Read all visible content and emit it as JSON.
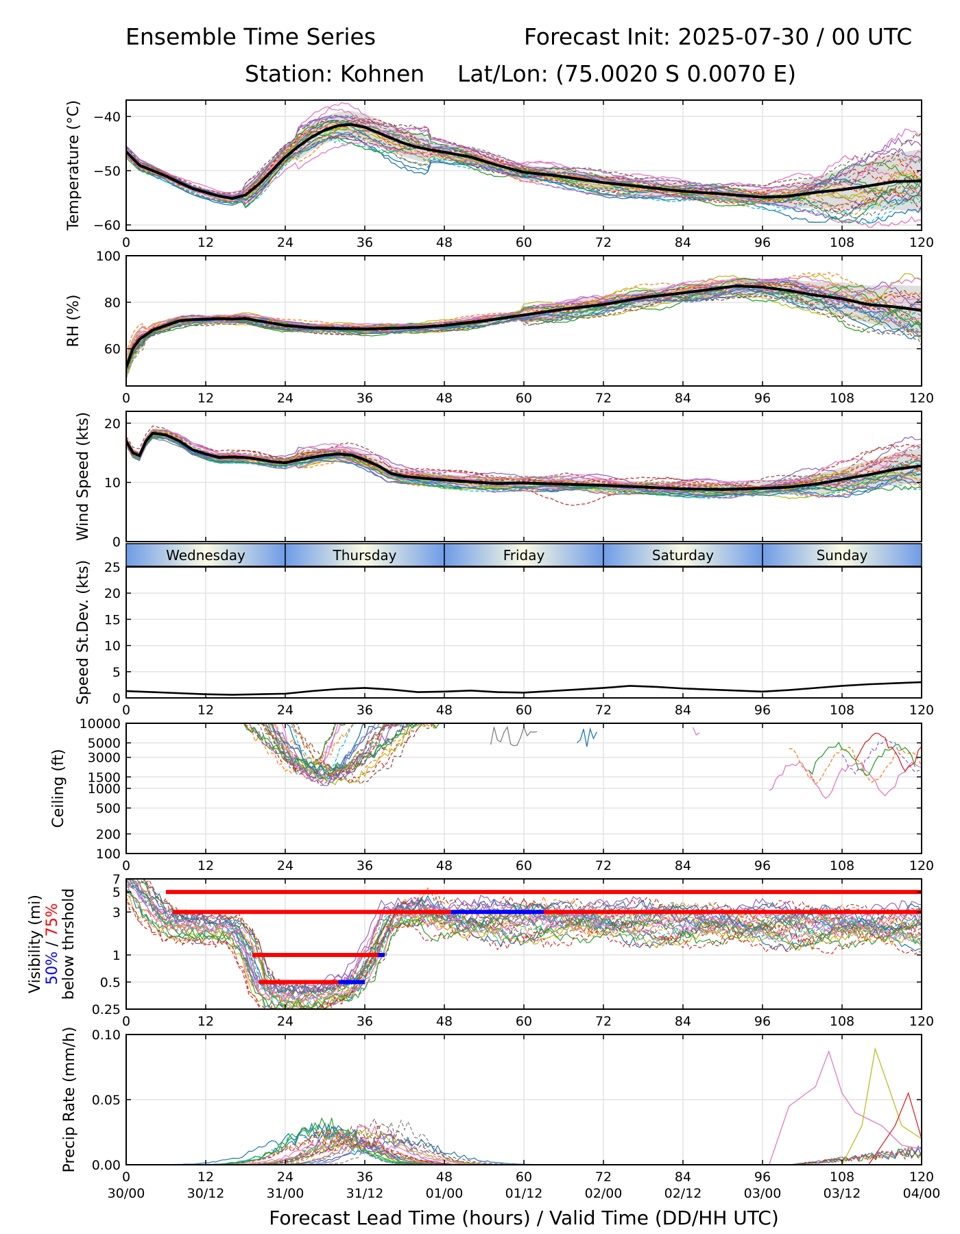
{
  "header": {
    "title": "Ensemble Time Series",
    "init": "Forecast Init: 2025-07-30 / 00 UTC",
    "station": "Station: Kohnen",
    "latlon": "Lat/Lon: (75.0020 S 0.0070 E)"
  },
  "xaxis": {
    "ticks": [
      0,
      12,
      24,
      36,
      48,
      60,
      72,
      84,
      96,
      108,
      120
    ],
    "valid_labels": [
      "30/00",
      "30/12",
      "31/00",
      "31/12",
      "01/00",
      "01/12",
      "02/00",
      "02/12",
      "03/00",
      "03/12",
      "04/00"
    ],
    "label": "Forecast Lead Time (hours) / Valid Time (DD/HH UTC)",
    "range": [
      0,
      120
    ]
  },
  "days": [
    "Wednesday",
    "Thursday",
    "Friday",
    "Saturday",
    "Sunday"
  ],
  "colors": {
    "members": [
      "#1f77b4",
      "#ff7f0e",
      "#2ca02c",
      "#d62728",
      "#9467bd",
      "#8c564b",
      "#e377c2",
      "#7f7f7f",
      "#bcbd22",
      "#17becf"
    ],
    "mean": "#000000",
    "spread": "#c8c8c8",
    "vis50": "#0000ff",
    "vis75": "#ff0000",
    "day_edge": "#6f9ce6",
    "day_center": "#fbfbe4"
  },
  "chart_data": [
    {
      "id": "temperature",
      "type": "line",
      "ylabel": "Temperature (°C)",
      "ylim": [
        -61,
        -37
      ],
      "yticks": [
        -40,
        -50,
        -60
      ],
      "grid": true,
      "series": [
        {
          "role": "mean",
          "x": [
            0,
            2,
            4,
            6,
            8,
            10,
            12,
            14,
            16,
            18,
            20,
            22,
            24,
            26,
            28,
            30,
            32,
            34,
            36,
            38,
            40,
            42,
            44,
            46,
            48,
            52,
            56,
            60,
            64,
            68,
            72,
            78,
            84,
            90,
            96,
            100,
            104,
            108,
            112,
            116,
            120
          ],
          "values": [
            -46.5,
            -49.0,
            -50.0,
            -51.0,
            -52.2,
            -53.3,
            -54.0,
            -54.7,
            -55.1,
            -54.5,
            -52.5,
            -50.0,
            -47.5,
            -45.5,
            -43.8,
            -42.5,
            -41.7,
            -41.5,
            -42.0,
            -43.0,
            -44.0,
            -45.0,
            -45.7,
            -46.2,
            -46.6,
            -47.5,
            -49.0,
            -50.3,
            -50.8,
            -51.5,
            -52.2,
            -53.0,
            -53.8,
            -54.3,
            -54.9,
            -54.7,
            -54.0,
            -53.5,
            -52.8,
            -52.0,
            -51.9
          ]
        }
      ]
    },
    {
      "id": "rh",
      "type": "line",
      "ylabel": "RH (%)",
      "ylim": [
        44,
        100
      ],
      "yticks": [
        60,
        80,
        100
      ],
      "grid": true,
      "series": [
        {
          "role": "mean",
          "x": [
            0,
            1,
            2,
            4,
            6,
            8,
            10,
            12,
            14,
            16,
            18,
            20,
            24,
            28,
            32,
            36,
            40,
            44,
            48,
            54,
            60,
            66,
            72,
            78,
            84,
            88,
            92,
            96,
            100,
            104,
            108,
            112,
            116,
            120
          ],
          "values": [
            52,
            60,
            64,
            68,
            70,
            72,
            72.5,
            72.7,
            73,
            72.8,
            73,
            72,
            70,
            69,
            68.7,
            68.5,
            68.8,
            69.2,
            70,
            72,
            74.5,
            77,
            79,
            82,
            84,
            85.5,
            87,
            86.5,
            85,
            83,
            81.5,
            79,
            78,
            76.5
          ]
        }
      ]
    },
    {
      "id": "wind_speed",
      "type": "line",
      "ylabel": "Wind Speed (kts)",
      "ylim": [
        0,
        22
      ],
      "yticks": [
        0,
        10,
        20
      ],
      "grid": true,
      "series": [
        {
          "role": "mean",
          "x": [
            0,
            1,
            2,
            3,
            4,
            6,
            8,
            10,
            12,
            14,
            16,
            18,
            20,
            22,
            24,
            26,
            28,
            30,
            32,
            34,
            36,
            38,
            40,
            42,
            44,
            46,
            48,
            52,
            56,
            60,
            66,
            72,
            78,
            84,
            90,
            96,
            100,
            104,
            108,
            112,
            116,
            120
          ],
          "values": [
            17,
            15,
            14.5,
            17,
            18.3,
            18,
            17,
            15.5,
            14.8,
            14.2,
            14.3,
            14.2,
            13.9,
            13.5,
            13.3,
            13.8,
            14.2,
            14.6,
            14.8,
            14.6,
            13.8,
            12.8,
            11.5,
            11,
            10.8,
            10.6,
            10.4,
            10.1,
            9.8,
            9.9,
            9.7,
            9.5,
            9.2,
            8.9,
            8.8,
            9.0,
            9.2,
            9.7,
            10.5,
            11.3,
            12.2,
            12.8
          ]
        }
      ]
    },
    {
      "id": "speed_stdev",
      "type": "line",
      "ylabel": "Speed St.Dev. (kts)",
      "ylim": [
        0,
        25
      ],
      "yticks": [
        0,
        5,
        10,
        15,
        20,
        25
      ],
      "grid": true,
      "series": [
        {
          "role": "stdev",
          "x": [
            0,
            4,
            8,
            12,
            16,
            20,
            24,
            28,
            32,
            36,
            40,
            44,
            48,
            52,
            56,
            60,
            64,
            68,
            72,
            76,
            80,
            84,
            88,
            92,
            96,
            100,
            104,
            108,
            112,
            116,
            120
          ],
          "values": [
            1.3,
            1.1,
            0.9,
            0.7,
            0.6,
            0.7,
            0.8,
            1.3,
            1.7,
            1.9,
            1.6,
            1.1,
            1.2,
            1.4,
            1.1,
            1.0,
            1.3,
            1.6,
            1.9,
            2.3,
            2.1,
            1.8,
            1.6,
            1.4,
            1.2,
            1.5,
            1.9,
            2.3,
            2.6,
            2.8,
            3.0
          ]
        }
      ]
    },
    {
      "id": "ceiling",
      "type": "line",
      "ylabel": "Ceiling (ft)",
      "yscale": "log",
      "ylim": [
        100,
        10000
      ],
      "yticks": [
        100,
        200,
        500,
        1000,
        1500,
        3000,
        5000,
        10000
      ],
      "grid": true
    },
    {
      "id": "visibility",
      "type": "line",
      "ylabel": "Visibility (mi)",
      "ylabel_parts": [
        "50%",
        " / ",
        "75%"
      ],
      "ylabel_sub": "below thrshold",
      "yscale": "log",
      "ylim": [
        0.25,
        7
      ],
      "yticks": [
        0.25,
        0.5,
        1,
        3,
        5,
        7
      ],
      "grid": true,
      "threshold_bars": [
        {
          "level": 5,
          "x_start": 6,
          "x_end": 120,
          "color": "red"
        },
        {
          "level": 3,
          "x_start": 7,
          "x_end": 49,
          "color": "red"
        },
        {
          "level": 3,
          "x_start": 49,
          "x_end": 63,
          "color": "blue"
        },
        {
          "level": 3,
          "x_start": 63,
          "x_end": 120,
          "color": "red"
        },
        {
          "level": 1,
          "x_start": 19,
          "x_end": 38,
          "color": "red"
        },
        {
          "level": 1,
          "x_start": 38,
          "x_end": 39,
          "color": "blue"
        },
        {
          "level": 0.5,
          "x_start": 20,
          "x_end": 32,
          "color": "red"
        },
        {
          "level": 0.5,
          "x_start": 32,
          "x_end": 36,
          "color": "blue"
        }
      ]
    },
    {
      "id": "precip",
      "type": "line",
      "ylabel": "Precip Rate (mm/h)",
      "ylim": [
        0,
        0.1
      ],
      "yticks": [
        0.0,
        0.05,
        0.1
      ],
      "ytick_labels": [
        "0.00",
        "0.05",
        "0.10"
      ],
      "grid": true
    }
  ]
}
